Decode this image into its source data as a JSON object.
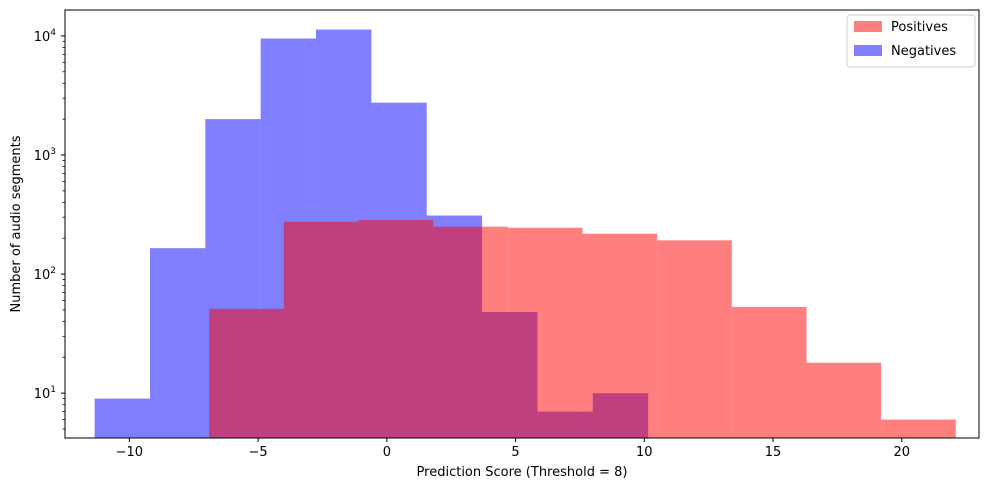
{
  "chart_data": {
    "type": "bar",
    "title": "",
    "xlabel": "Prediction Score (Threshold = 8)",
    "ylabel": "Number of audio segments",
    "xlim": [
      -12.5,
      23.0
    ],
    "ylim": [
      4.2,
      16500
    ],
    "yscale": "log",
    "grid": false,
    "legend_position": "top-right",
    "x_ticks": [
      {
        "value": -10,
        "label": "−10"
      },
      {
        "value": -5,
        "label": "−5"
      },
      {
        "value": 0,
        "label": "0"
      },
      {
        "value": 5,
        "label": "5"
      },
      {
        "value": 10,
        "label": "10"
      },
      {
        "value": 15,
        "label": "15"
      },
      {
        "value": 20,
        "label": "20"
      }
    ],
    "y_ticks": [
      {
        "value": 10,
        "base": "10",
        "exp": "1"
      },
      {
        "value": 100,
        "base": "10",
        "exp": "2"
      },
      {
        "value": 1000,
        "base": "10",
        "exp": "3"
      },
      {
        "value": 10000,
        "base": "10",
        "exp": "4"
      }
    ],
    "series": [
      {
        "name": "Negatives",
        "color": "#0000ff",
        "opacity": 0.5,
        "bins": [
          {
            "x0": -11.35,
            "x1": -9.2,
            "value": 9
          },
          {
            "x0": -9.2,
            "x1": -7.05,
            "value": 165
          },
          {
            "x0": -7.05,
            "x1": -4.9,
            "value": 2000
          },
          {
            "x0": -4.9,
            "x1": -2.75,
            "value": 9500
          },
          {
            "x0": -2.75,
            "x1": -0.6,
            "value": 11300
          },
          {
            "x0": -0.6,
            "x1": 1.55,
            "value": 2750
          },
          {
            "x0": 1.55,
            "x1": 3.7,
            "value": 310
          },
          {
            "x0": 3.7,
            "x1": 5.85,
            "value": 48
          },
          {
            "x0": 5.85,
            "x1": 8.0,
            "value": 7
          },
          {
            "x0": 8.0,
            "x1": 10.15,
            "value": 10
          }
        ]
      },
      {
        "name": "Positives",
        "color": "#ff0000",
        "opacity": 0.5,
        "bins": [
          {
            "x0": -6.9,
            "x1": -4.0,
            "value": 51
          },
          {
            "x0": -4.0,
            "x1": -1.1,
            "value": 275
          },
          {
            "x0": -1.1,
            "x1": 1.8,
            "value": 285
          },
          {
            "x0": 1.8,
            "x1": 4.7,
            "value": 250
          },
          {
            "x0": 4.7,
            "x1": 7.6,
            "value": 245
          },
          {
            "x0": 7.6,
            "x1": 10.5,
            "value": 218
          },
          {
            "x0": 10.5,
            "x1": 13.4,
            "value": 192
          },
          {
            "x0": 13.4,
            "x1": 16.3,
            "value": 53
          },
          {
            "x0": 16.3,
            "x1": 19.2,
            "value": 18
          },
          {
            "x0": 19.2,
            "x1": 22.1,
            "value": 6
          }
        ]
      }
    ],
    "legend": [
      {
        "label": "Positives",
        "color": "#ff0000"
      },
      {
        "label": "Negatives",
        "color": "#0000ff"
      }
    ]
  }
}
